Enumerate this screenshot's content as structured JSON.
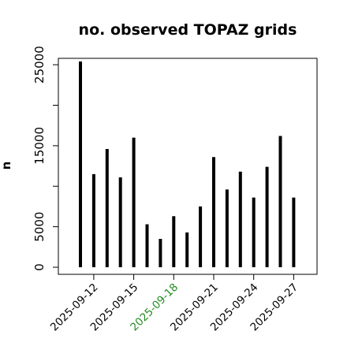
{
  "chart_data": {
    "type": "bar",
    "title": "no. observed TOPAZ grids",
    "xlabel": "",
    "ylabel": "n",
    "ylim": [
      -500,
      26000
    ],
    "yticks": [
      0,
      5000,
      15000,
      25000
    ],
    "y_minor_ticks": [
      10000,
      20000
    ],
    "grid": false,
    "legend": "none",
    "x": [
      "2025-09-11",
      "2025-09-12",
      "2025-09-13",
      "2025-09-14",
      "2025-09-15",
      "2025-09-16",
      "2025-09-17",
      "2025-09-18",
      "2025-09-19",
      "2025-09-20",
      "2025-09-21",
      "2025-09-22",
      "2025-09-23",
      "2025-09-24",
      "2025-09-25",
      "2025-09-26",
      "2025-09-27"
    ],
    "values": [
      25400,
      11500,
      14600,
      11100,
      16000,
      5300,
      3500,
      6300,
      4300,
      7500,
      13600,
      9600,
      11800,
      8600,
      12400,
      16200,
      8600
    ],
    "xticks": [
      "2025-09-12",
      "2025-09-15",
      "2025-09-18",
      "2025-09-21",
      "2025-09-24",
      "2025-09-27"
    ],
    "highlight_tick": "2025-09-18",
    "colors": {
      "bar": "#000000",
      "axis": "#000000",
      "tick_label": "#000000",
      "highlight_tick_label": "#228b22"
    }
  }
}
